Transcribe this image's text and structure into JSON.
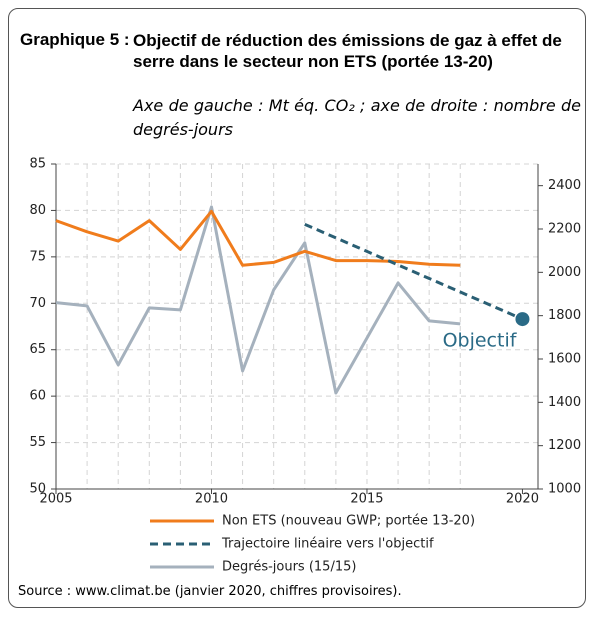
{
  "chart_data": {
    "type": "line",
    "title_label": "Graphique 5 :",
    "title": "Objectif de réduction des émissions de gaz à effet de serre dans le secteur non ETS (portée 13-20)",
    "subtitle": "Axe de gauche : Mt éq. CO₂ ; axe de droite : nombre de degrés-jours",
    "source": "Source : www.climat.be (janvier 2020, chiffres provisoires).",
    "xlim": [
      2005,
      2020.5
    ],
    "xticks": [
      2005,
      2010,
      2015,
      2020
    ],
    "ylim": [
      50,
      85
    ],
    "yticks": [
      50,
      55,
      60,
      65,
      70,
      75,
      80,
      85
    ],
    "y2lim": [
      1000,
      2500
    ],
    "y2ticks": [
      1000,
      1200,
      1400,
      1600,
      1800,
      2000,
      2200,
      2400
    ],
    "grid": true,
    "series": [
      {
        "name": "Non ETS (nouveau GWP; portée 13-20)",
        "color": "#f07c1c",
        "style": "solid",
        "x": [
          2005,
          2006,
          2007,
          2008,
          2009,
          2010,
          2011,
          2012,
          2013,
          2014,
          2015,
          2016,
          2017,
          2018
        ],
        "values": [
          78.9,
          77.7,
          76.7,
          78.9,
          75.8,
          79.9,
          74.1,
          74.4,
          75.6,
          74.6,
          74.6,
          74.5,
          74.2,
          74.1
        ]
      },
      {
        "name": "Trajectoire linéaire vers l'objectif",
        "color": "#2a5f74",
        "style": "dashed",
        "x": [
          2013,
          2020
        ],
        "values": [
          78.5,
          68.3
        ]
      },
      {
        "name": "Degrés-jours (15/15)",
        "color": "#a5b1bd",
        "style": "solid",
        "axis": "y2",
        "x": [
          2005,
          2006,
          2007,
          2008,
          2009,
          2010,
          2011,
          2012,
          2013,
          2014,
          2015,
          2016,
          2017,
          2018
        ],
        "values": [
          1860,
          1845,
          1573,
          1836,
          1827,
          2302,
          1545,
          1919,
          2136,
          1443,
          1697,
          1951,
          1776,
          1762
        ]
      }
    ],
    "annotation": {
      "text": "Objectif",
      "x": 2020,
      "y": 68.3,
      "color": "#2a6a86"
    }
  }
}
